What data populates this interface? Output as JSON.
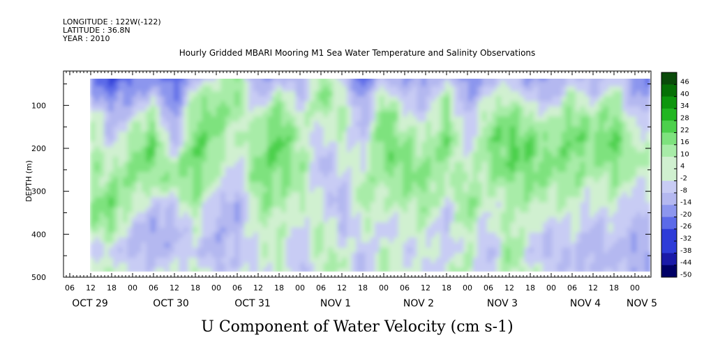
{
  "header": {
    "longitude": "LONGITUDE : 122W(-122)",
    "latitude": "LATITUDE : 36.8N",
    "year": "YEAR : 2010"
  },
  "chart_data": {
    "type": "heatmap",
    "title": "Hourly Gridded MBARI Mooring M1 Sea Water Temperature and Salinity Observations",
    "xlabel": "U Component of Water Velocity (cm s-1)",
    "ylabel": "DEPTH (m)",
    "x_hour_ticks": [
      "06",
      "12",
      "18",
      "00",
      "06",
      "12",
      "18",
      "00",
      "06",
      "12",
      "18",
      "00",
      "06",
      "12",
      "18",
      "00",
      "06",
      "12",
      "18",
      "00",
      "06",
      "12",
      "18",
      "00",
      "06",
      "12",
      "18",
      "00"
    ],
    "x_day_labels": [
      "OCT 29",
      "OCT 30",
      "OCT 31",
      "NOV  1",
      "NOV  2",
      "NOV  3",
      "NOV  4",
      "NOV  5"
    ],
    "y_ticks": [
      "100",
      "200",
      "300",
      "400",
      "500"
    ],
    "y_range": [
      20,
      500
    ],
    "data_depth_range": [
      20,
      490
    ],
    "colorbar": {
      "levels": [
        "46",
        "40",
        "34",
        "28",
        "22",
        "16",
        "10",
        "4",
        "-2",
        "-8",
        "-14",
        "-20",
        "-26",
        "-32",
        "-38",
        "-44",
        "-50"
      ],
      "range": [
        -50,
        50
      ],
      "negative_colors": [
        "#000066",
        "#1a1aa8",
        "#2e3cd8",
        "#5b6ae8",
        "#8c96ee",
        "#b4b8f0",
        "#c8ccf4"
      ],
      "positive_colors": [
        "#d0f0d0",
        "#a8eca8",
        "#7ee27e",
        "#4cd04c",
        "#22b622",
        "#0e960e",
        "#067006",
        "#0a4a0a"
      ]
    },
    "field_description_colors": {
      "negative": "blue",
      "positive": "green"
    },
    "field": {
      "columns_hours": [
        {
          "hour": 0,
          "profile": [
            -14,
            -8,
            6,
            10,
            4,
            -4,
            8,
            6,
            4,
            2
          ]
        },
        {
          "hour": 6,
          "profile": [
            -20,
            -10,
            12,
            16,
            8,
            -2,
            10,
            8,
            -6,
            4
          ]
        },
        {
          "hour": 12,
          "profile": [
            -26,
            -14,
            8,
            12,
            10,
            6,
            14,
            10,
            -8,
            6
          ]
        },
        {
          "hour": 18,
          "profile": [
            -32,
            -20,
            -12,
            -8,
            4,
            12,
            16,
            14,
            -2,
            10
          ]
        },
        {
          "hour": 24,
          "profile": [
            -28,
            -16,
            -4,
            10,
            14,
            12,
            6,
            -8,
            -10,
            -4
          ]
        },
        {
          "hour": 30,
          "profile": [
            -20,
            -8,
            10,
            18,
            16,
            8,
            -6,
            -14,
            -12,
            -2
          ]
        },
        {
          "hour": 36,
          "profile": [
            -30,
            -24,
            -18,
            -14,
            6,
            10,
            -4,
            -10,
            -8,
            2
          ]
        },
        {
          "hour": 42,
          "profile": [
            -16,
            6,
            14,
            18,
            20,
            14,
            10,
            4,
            -4,
            8
          ]
        },
        {
          "hour": 48,
          "profile": [
            -6,
            10,
            16,
            12,
            8,
            4,
            -6,
            -10,
            -12,
            -8
          ]
        },
        {
          "hour": 54,
          "profile": [
            18,
            12,
            8,
            4,
            -2,
            -8,
            -14,
            -10,
            -6,
            -2
          ]
        },
        {
          "hour": 60,
          "profile": [
            -24,
            -10,
            4,
            10,
            14,
            16,
            10,
            6,
            2,
            -4
          ]
        },
        {
          "hour": 66,
          "profile": [
            -14,
            6,
            16,
            20,
            18,
            12,
            8,
            4,
            6,
            10
          ]
        },
        {
          "hour": 72,
          "profile": [
            -18,
            -8,
            2,
            8,
            12,
            10,
            4,
            -2,
            -8,
            -12
          ]
        },
        {
          "hour": 78,
          "profile": [
            10,
            14,
            6,
            -4,
            -10,
            -6,
            2,
            8,
            10,
            6
          ]
        },
        {
          "hour": 84,
          "profile": [
            -8,
            4,
            10,
            6,
            2,
            -6,
            -12,
            -8,
            4,
            8
          ]
        },
        {
          "hour": 90,
          "profile": [
            -26,
            -20,
            -14,
            -8,
            2,
            8,
            10,
            4,
            -6,
            -10
          ]
        },
        {
          "hour": 96,
          "profile": [
            -20,
            8,
            16,
            20,
            14,
            8,
            2,
            -4,
            6,
            10
          ]
        },
        {
          "hour": 102,
          "profile": [
            -14,
            -8,
            4,
            10,
            16,
            12,
            8,
            2,
            -4,
            4
          ]
        },
        {
          "hour": 108,
          "profile": [
            -22,
            -10,
            -4,
            6,
            10,
            14,
            10,
            6,
            2,
            -6
          ]
        },
        {
          "hour": 114,
          "profile": [
            -10,
            8,
            14,
            18,
            12,
            6,
            -2,
            -8,
            -4,
            6
          ]
        },
        {
          "hour": 120,
          "profile": [
            -24,
            -16,
            -8,
            -4,
            2,
            10,
            14,
            10,
            4,
            8
          ]
        },
        {
          "hour": 126,
          "profile": [
            -16,
            -2,
            10,
            14,
            12,
            6,
            2,
            -4,
            -10,
            -6
          ]
        },
        {
          "hour": 132,
          "profile": [
            -8,
            6,
            14,
            20,
            18,
            12,
            6,
            10,
            14,
            8
          ]
        },
        {
          "hour": 138,
          "profile": [
            -18,
            -8,
            8,
            16,
            18,
            14,
            8,
            2,
            -4,
            6
          ]
        },
        {
          "hour": 144,
          "profile": [
            -20,
            -10,
            2,
            10,
            14,
            10,
            4,
            -6,
            -10,
            -4
          ]
        },
        {
          "hour": 150,
          "profile": [
            -10,
            6,
            14,
            18,
            14,
            10,
            6,
            2,
            -6,
            -8
          ]
        },
        {
          "hour": 156,
          "profile": [
            -16,
            -6,
            8,
            14,
            10,
            4,
            -2,
            -8,
            -12,
            -10
          ]
        },
        {
          "hour": 162,
          "profile": [
            -6,
            8,
            16,
            20,
            16,
            10,
            4,
            -2,
            -8,
            -6
          ]
        },
        {
          "hour": 168,
          "profile": [
            -20,
            -14,
            -6,
            4,
            8,
            2,
            -6,
            -10,
            -14,
            -12
          ]
        }
      ]
    }
  }
}
